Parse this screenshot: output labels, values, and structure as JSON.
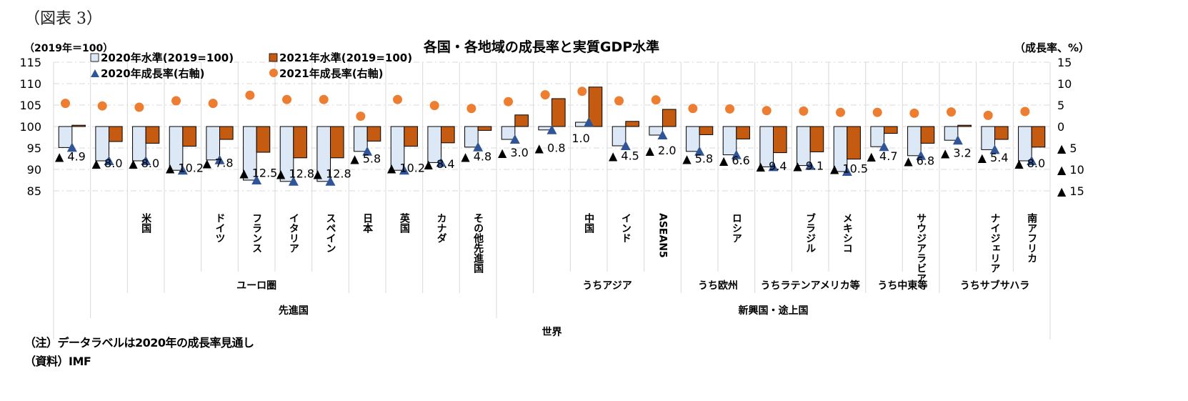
{
  "figure_label": "（図表 3）",
  "notes": {
    "note": "（注）データラベルは2020年の成長率見通し",
    "source": "（資料）IMF"
  },
  "chart_data": {
    "type": "bar",
    "title": "各国・各地域の成長率と実質GDP水準",
    "left_axis_label": "（2019年＝100）",
    "right_axis_label": "（成長率、%）",
    "ylim_left": [
      85,
      115
    ],
    "ylim_right": [
      -15,
      15
    ],
    "left_ticks": [
      "115",
      "110",
      "105",
      "100",
      "95",
      "90",
      "85"
    ],
    "right_ticks": [
      "15",
      "10",
      "5",
      "0",
      "▲ 5",
      "▲ 10",
      "▲ 15"
    ],
    "grid": true,
    "legend": {
      "placement": "top-left",
      "items": [
        {
          "label": "2020年水準(2019=100)",
          "marker": "square",
          "color": "#dce8f5"
        },
        {
          "label": "2021年水準(2019=100)",
          "marker": "square",
          "color": "#c55a11"
        },
        {
          "label": "2020年成長率(右軸)",
          "marker": "triangle",
          "color": "#2f5597"
        },
        {
          "label": "2021年成長率(右軸)",
          "marker": "circle",
          "color": "#ed7d31"
        }
      ]
    },
    "colors": {
      "level_2020": "#dce8f5",
      "level_2021": "#c55a11",
      "growth_2020": "#2f5597",
      "growth_2021": "#ed7d31",
      "grid": "#d9d9d9"
    },
    "categories": [
      "",
      "",
      "米国",
      "",
      "ドイツ",
      "フランス",
      "イタリア",
      "スペイン",
      "日本",
      "英国",
      "カナダ",
      "その他先進国",
      "",
      "",
      "中国",
      "インド",
      "ASEAN5",
      "",
      "ロシア",
      "",
      "ブラジル",
      "メキシコ",
      "",
      "サウジアラビア",
      "",
      "ナイジェリア",
      "南アフリカ"
    ],
    "series": [
      {
        "name": "2020年水準(2019=100)",
        "axis": "left",
        "values": [
          95.1,
          92.0,
          92.0,
          89.8,
          92.2,
          87.5,
          87.2,
          87.2,
          94.2,
          89.8,
          91.6,
          95.2,
          97.0,
          99.2,
          101.0,
          95.5,
          98.0,
          94.2,
          93.4,
          90.6,
          90.9,
          89.5,
          95.3,
          93.2,
          96.8,
          94.6,
          92.0
        ]
      },
      {
        "name": "2021年水準(2019=100)",
        "axis": "left",
        "values": [
          100.3,
          96.5,
          96.1,
          95.4,
          97.0,
          94.0,
          92.7,
          92.7,
          96.6,
          95.4,
          96.2,
          99.1,
          102.7,
          106.5,
          109.2,
          101.2,
          104.0,
          98.1,
          97.1,
          93.9,
          94.1,
          92.4,
          98.4,
          96.1,
          100.3,
          97.0,
          95.2
        ]
      },
      {
        "name": "2020年成長率(右軸)",
        "axis": "right",
        "values": [
          -4.9,
          -8.0,
          -8.0,
          -10.2,
          -7.8,
          -12.5,
          -12.8,
          -12.8,
          -5.8,
          -10.2,
          -8.4,
          -4.8,
          -3.0,
          -0.8,
          1.0,
          -4.5,
          -2.0,
          -5.8,
          -6.6,
          -9.4,
          -9.1,
          -10.5,
          -4.7,
          -6.8,
          -3.2,
          -5.4,
          -8.0
        ]
      },
      {
        "name": "2021年成長率(右軸)",
        "axis": "right",
        "values": [
          5.4,
          4.8,
          4.5,
          6.0,
          5.4,
          7.3,
          6.3,
          6.3,
          2.4,
          6.3,
          4.9,
          4.2,
          5.8,
          7.4,
          8.2,
          6.0,
          6.2,
          4.2,
          4.1,
          3.7,
          3.6,
          3.3,
          3.3,
          3.1,
          3.4,
          2.6,
          3.5
        ]
      }
    ],
    "data_labels": [
      "▲ 4.9",
      "▲ 8.0",
      "▲ 8.0",
      "▲ 10.2",
      "▲ 7.8",
      "▲ 12.5",
      "▲ 12.8",
      "▲ 12.8",
      "▲ 5.8",
      "▲ 10.2",
      "▲ 8.4",
      "▲ 4.8",
      "▲ 3.0",
      "▲ 0.8",
      "1.0",
      "▲ 4.5",
      "▲ 2.0",
      "▲ 5.8",
      "▲ 6.6",
      "▲ 9.4",
      "▲ 9.1",
      "▲ 10.5",
      "▲ 4.7",
      "▲ 6.8",
      "▲ 3.2",
      "▲ 5.4",
      "▲ 8.0"
    ],
    "group_labels_level2": [
      {
        "label": "ユーロ圏",
        "start": 3,
        "end": 7
      },
      {
        "label": "うちアジア",
        "start": 13,
        "end": 16
      },
      {
        "label": "うち欧州",
        "start": 17,
        "end": 18
      },
      {
        "label": "うちラテンアメリカ等",
        "start": 19,
        "end": 21
      },
      {
        "label": "うち中東等",
        "start": 22,
        "end": 23
      },
      {
        "label": "うちサブサハラ",
        "start": 24,
        "end": 26
      }
    ],
    "group_labels_level1": [
      {
        "label": "先進国",
        "start": 1,
        "end": 11
      },
      {
        "label": "新興国・途上国",
        "start": 12,
        "end": 26
      }
    ],
    "group_labels_level0": [
      {
        "label": "世界",
        "start": 0,
        "end": 26
      }
    ]
  }
}
